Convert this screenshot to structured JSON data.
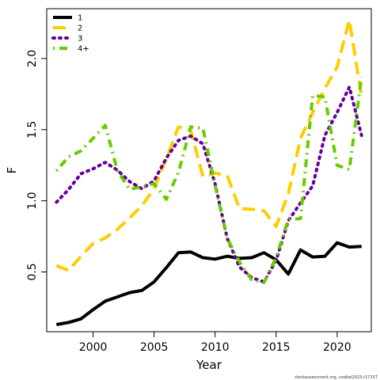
{
  "chart_data": {
    "type": "line",
    "xlabel": "Year",
    "ylabel": "F",
    "xlim": [
      1996.2,
      2022.8
    ],
    "ylim": [
      0.08,
      2.35
    ],
    "x_ticks": [
      2000,
      2005,
      2010,
      2015,
      2020
    ],
    "y_ticks": [
      0.5,
      1.0,
      1.5,
      2.0
    ],
    "x_tick_labels": [
      "2000",
      "2005",
      "2010",
      "2015",
      "2020"
    ],
    "y_tick_labels": [
      "0.5",
      "1.0",
      "1.5",
      "2.0"
    ],
    "legend_position": "top-left",
    "x": [
      1997,
      1998,
      1999,
      2000,
      2001,
      2002,
      2003,
      2004,
      2005,
      2006,
      2007,
      2008,
      2009,
      2010,
      2011,
      2012,
      2013,
      2014,
      2015,
      2016,
      2017,
      2018,
      2019,
      2020,
      2021,
      2022
    ],
    "series": [
      {
        "name": "1",
        "color": "#000000",
        "dash": "solid",
        "values": [
          0.13,
          0.145,
          0.17,
          0.235,
          0.295,
          0.325,
          0.355,
          0.37,
          0.43,
          0.53,
          0.635,
          0.64,
          0.6,
          0.59,
          0.61,
          0.595,
          0.6,
          0.635,
          0.585,
          0.485,
          0.655,
          0.605,
          0.61,
          0.705,
          0.675,
          0.68
        ]
      },
      {
        "name": "2",
        "color": "#FFCC00",
        "dash": "dashed",
        "values": [
          0.545,
          0.51,
          0.61,
          0.7,
          0.74,
          0.8,
          0.88,
          0.965,
          1.085,
          1.295,
          1.52,
          1.495,
          1.17,
          1.195,
          1.175,
          0.945,
          0.94,
          0.93,
          0.82,
          1.05,
          1.44,
          1.62,
          1.79,
          1.94,
          2.27,
          1.73
        ]
      },
      {
        "name": "3",
        "color": "#660099",
        "dash": "dotted",
        "values": [
          0.99,
          1.08,
          1.19,
          1.225,
          1.27,
          1.215,
          1.135,
          1.085,
          1.14,
          1.3,
          1.425,
          1.455,
          1.4,
          1.12,
          0.735,
          0.535,
          0.46,
          0.43,
          0.58,
          0.86,
          0.985,
          1.105,
          1.46,
          1.62,
          1.8,
          1.46
        ]
      },
      {
        "name": "4+",
        "color": "#66CC00",
        "dash": "dotdash",
        "values": [
          1.21,
          1.31,
          1.35,
          1.44,
          1.53,
          1.21,
          1.08,
          1.1,
          1.12,
          1.01,
          1.2,
          1.52,
          1.51,
          1.11,
          0.735,
          0.57,
          0.445,
          0.425,
          0.6,
          0.87,
          0.875,
          1.74,
          1.73,
          1.25,
          1.22,
          1.87
        ]
      }
    ]
  },
  "source_text": "stockassessment.org, codkat2023.r17157"
}
